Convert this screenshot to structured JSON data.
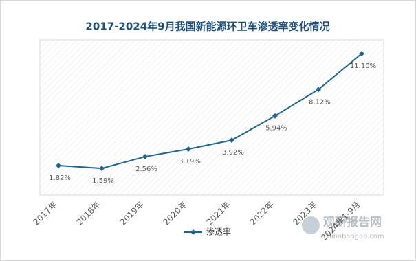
{
  "chart_data": {
    "type": "line",
    "title": "2017-2024年9月我国新能源环卫车渗透率变化情况",
    "categories": [
      "2017年",
      "2018年",
      "2019年",
      "2020年",
      "2021年",
      "2022年",
      "2023年",
      "2024年1-9月"
    ],
    "series": [
      {
        "name": "渗透率",
        "color": "#21658f",
        "values": [
          1.82,
          1.59,
          2.56,
          3.19,
          3.92,
          5.94,
          8.12,
          11.1
        ],
        "value_labels": [
          "1.82%",
          "1.59%",
          "2.56%",
          "3.19%",
          "3.92%",
          "5.94%",
          "8.12%",
          "11.10%"
        ]
      }
    ],
    "legend": "bottom",
    "watermark": {
      "name": "观研报告网",
      "url": "chinabaogao.com"
    }
  }
}
